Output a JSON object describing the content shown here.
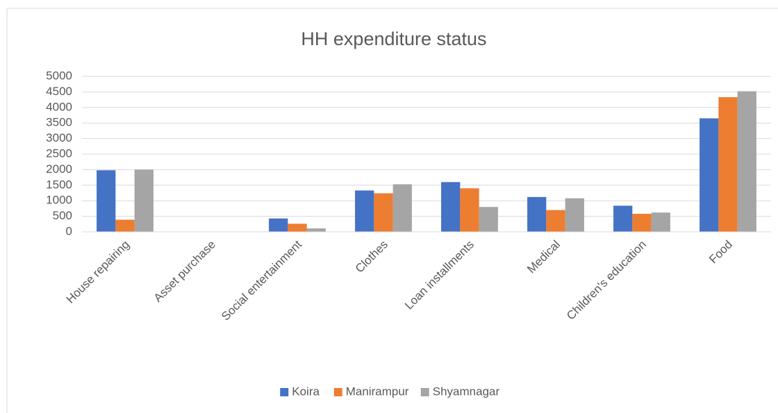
{
  "chart_data": {
    "type": "bar",
    "title": "HH expenditure status",
    "categories": [
      "House repairing",
      "Asset purchase",
      "Social entertainment",
      "Clothes",
      "Loan installments",
      "Medical",
      "Children's education",
      "Food"
    ],
    "series": [
      {
        "name": "Koira",
        "color": "#4472c4",
        "values": [
          1980,
          0,
          430,
          1330,
          1600,
          1120,
          840,
          3650
        ]
      },
      {
        "name": "Manirampur",
        "color": "#ed7d31",
        "values": [
          390,
          0,
          260,
          1240,
          1400,
          700,
          580,
          4330
        ]
      },
      {
        "name": "Shyamnagar",
        "color": "#a5a5a5",
        "values": [
          2000,
          0,
          110,
          1530,
          800,
          1080,
          620,
          4520
        ]
      }
    ],
    "ylim": [
      0,
      5000
    ],
    "yticks": [
      0,
      500,
      1000,
      1500,
      2000,
      2500,
      3000,
      3500,
      4000,
      4500,
      5000
    ],
    "grid": true,
    "legend": "bottom"
  }
}
